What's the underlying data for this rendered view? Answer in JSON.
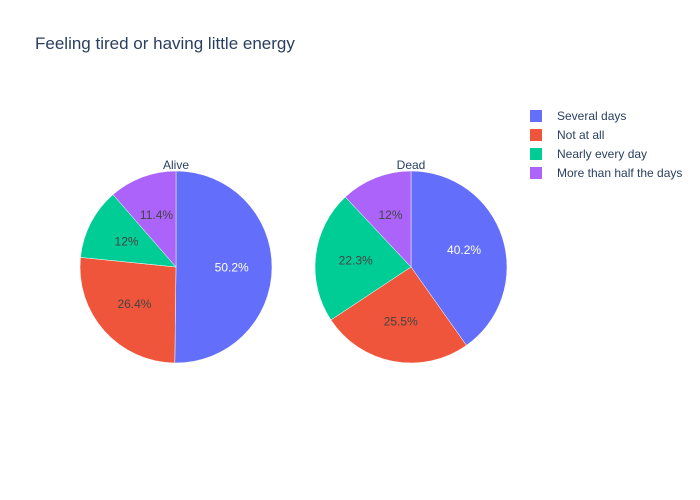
{
  "chart_data": {
    "type": "pie",
    "title": "Feeling tired or having little energy",
    "legend_position": "top-right",
    "categories": [
      "Several days",
      "Not at all",
      "Nearly every day",
      "More than half the days"
    ],
    "colors": [
      "#636efa",
      "#EF553B",
      "#00cc96",
      "#ab63fa"
    ],
    "pies": [
      {
        "name": "Alive",
        "values": [
          50.2,
          26.4,
          12.0,
          11.4
        ],
        "labels": [
          "50.2%",
          "26.4%",
          "12%",
          "11.4%"
        ]
      },
      {
        "name": "Dead",
        "values": [
          40.2,
          25.5,
          22.3,
          12.0
        ],
        "labels": [
          "40.2%",
          "25.5%",
          "22.3%",
          "12%"
        ]
      }
    ]
  }
}
